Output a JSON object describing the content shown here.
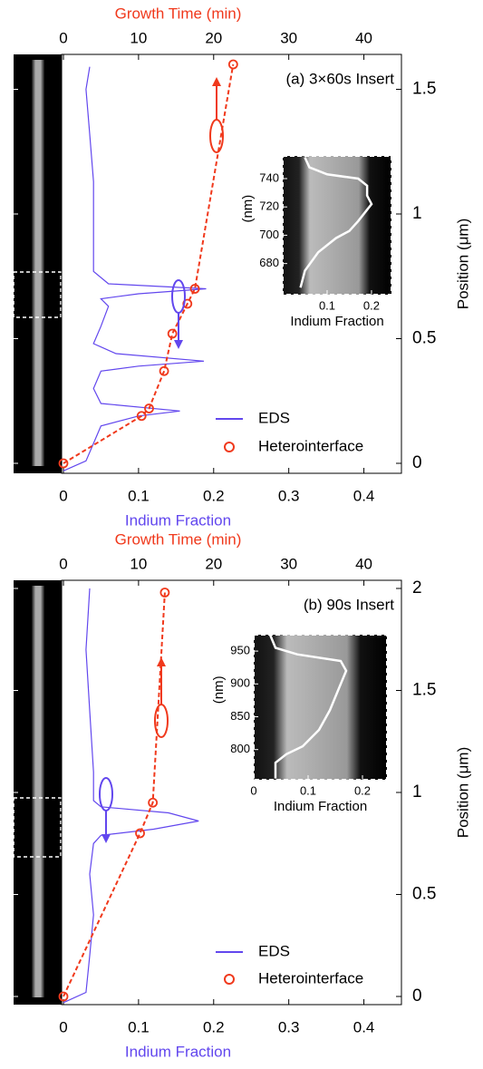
{
  "chart_data": [
    {
      "type": "line",
      "title": "(a) 3×60s Insert",
      "xlabel": "Indium Fraction",
      "x2label": "Growth Time (min)",
      "ylabel": "Position (μm)",
      "xlim": [
        0,
        0.45
      ],
      "xticks": [
        0,
        0.1,
        0.2,
        0.3,
        0.4
      ],
      "x2lim": [
        0,
        45
      ],
      "x2ticks": [
        0,
        10,
        20,
        30,
        40
      ],
      "ylim": [
        -0.04,
        1.64
      ],
      "yticks": [
        0,
        0.5,
        1,
        1.5
      ],
      "series": [
        {
          "name": "EDS",
          "color": "#6247ee",
          "style": "line",
          "xaxis": "x",
          "x": [
            0.0,
            0.03,
            0.04,
            0.05,
            0.1,
            0.155,
            0.05,
            0.04,
            0.05,
            0.1,
            0.187,
            0.07,
            0.04,
            0.05,
            0.06,
            0.05,
            0.1,
            0.19,
            0.06,
            0.04,
            0.04,
            0.04,
            0.035,
            0.03,
            0.035
          ],
          "y": [
            -0.03,
            0.01,
            0.08,
            0.15,
            0.19,
            0.21,
            0.24,
            0.3,
            0.37,
            0.39,
            0.41,
            0.44,
            0.48,
            0.55,
            0.63,
            0.66,
            0.68,
            0.7,
            0.72,
            0.77,
            0.95,
            1.13,
            1.32,
            1.5,
            1.59
          ]
        },
        {
          "name": "Heterointerface",
          "color": "#f0391c",
          "style": "markers",
          "linestyle": "dashed",
          "xaxis": "x2",
          "x": [
            0,
            10.4,
            11.4,
            13.4,
            14.5,
            16.5,
            17.5,
            22.6
          ],
          "y": [
            0,
            0.19,
            0.22,
            0.37,
            0.52,
            0.64,
            0.7,
            1.6
          ]
        }
      ],
      "inset": {
        "xlabel": "Indium Fraction",
        "ylabel": "(nm)",
        "xlim": [
          0,
          0.245
        ],
        "xticks": [
          0.1,
          0.2
        ],
        "ylim": [
          658,
          756
        ],
        "yticks": [
          680,
          700,
          720,
          740
        ],
        "series": {
          "color": "#ffffff",
          "x": [
            0.04,
            0.05,
            0.08,
            0.12,
            0.15,
            0.17,
            0.19,
            0.2,
            0.19,
            0.19,
            0.17,
            0.1,
            0.06,
            0.05
          ],
          "y": [
            663,
            675,
            688,
            698,
            703,
            710,
            718,
            722,
            728,
            735,
            740,
            743,
            748,
            755
          ]
        }
      }
    },
    {
      "type": "line",
      "title": "(b) 90s Insert",
      "xlabel": "Indium Fraction",
      "x2label": "Growth Time (min)",
      "ylabel": "Position (μm)",
      "xlim": [
        0,
        0.45
      ],
      "xticks": [
        0,
        0.1,
        0.2,
        0.3,
        0.4
      ],
      "x2lim": [
        0,
        45
      ],
      "x2ticks": [
        0,
        10,
        20,
        30,
        40
      ],
      "ylim": [
        -0.04,
        2.04
      ],
      "yticks": [
        0,
        0.5,
        1,
        1.5,
        2
      ],
      "series": [
        {
          "name": "EDS",
          "color": "#6247ee",
          "style": "line",
          "xaxis": "x",
          "x": [
            0.0,
            0.03,
            0.035,
            0.04,
            0.035,
            0.04,
            0.05,
            0.12,
            0.18,
            0.14,
            0.05,
            0.04,
            0.04,
            0.035,
            0.03,
            0.035
          ],
          "y": [
            -0.03,
            0.02,
            0.2,
            0.4,
            0.6,
            0.75,
            0.79,
            0.82,
            0.86,
            0.9,
            0.93,
            0.96,
            1.1,
            1.4,
            1.7,
            2.0
          ]
        },
        {
          "name": "Heterointerface",
          "color": "#f0391c",
          "style": "markers",
          "linestyle": "dashed",
          "xaxis": "x2",
          "x": [
            0,
            10.2,
            11.9,
            13.5
          ],
          "y": [
            0,
            0.8,
            0.95,
            1.98
          ]
        }
      ],
      "inset": {
        "xlabel": "Indium Fraction",
        "ylabel": "(nm)",
        "xlim": [
          0,
          0.245
        ],
        "xticks": [
          0,
          0.1,
          0.2
        ],
        "ylim": [
          754,
          975
        ],
        "yticks": [
          800,
          850,
          900,
          950
        ],
        "series": {
          "color": "#ffffff",
          "x": [
            0.04,
            0.04,
            0.06,
            0.09,
            0.12,
            0.14,
            0.15,
            0.16,
            0.17,
            0.16,
            0.08,
            0.04,
            0.03
          ],
          "y": [
            756,
            780,
            793,
            805,
            830,
            860,
            880,
            900,
            920,
            935,
            945,
            955,
            975
          ]
        }
      }
    }
  ]
}
